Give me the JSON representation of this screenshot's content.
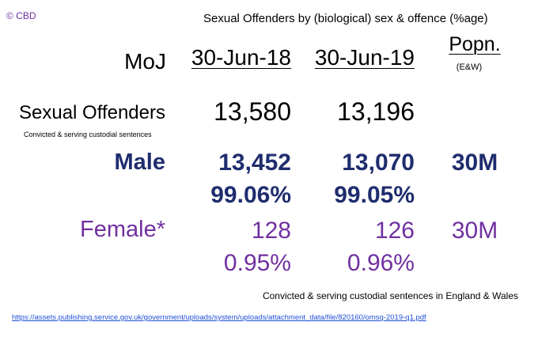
{
  "copyright": "© CBD",
  "title": "Sexual Offenders by (biological) sex & offence (%age)",
  "header": {
    "moj": "MoJ",
    "date1": "30-Jun-18",
    "date2": "30-Jun-19",
    "popn": "Popn.",
    "popn_sub": "(E&W)"
  },
  "rows": {
    "sexual_offenders": {
      "label": "Sexual Offenders",
      "note": "Convicted & serving custodial sentences",
      "v1": "13,580",
      "v2": "13,196"
    },
    "male": {
      "label": "Male",
      "v1": "13,452",
      "v2": "13,070",
      "popn": "30M",
      "pct1": "99.06%",
      "pct2": "99.05%"
    },
    "female": {
      "label": "Female*",
      "v1": "128",
      "v2": "126",
      "popn": "30M",
      "pct1": "0.95%",
      "pct2": "0.96%"
    }
  },
  "footnote": "Convicted & serving custodial sentences in England & Wales",
  "source_link": "https://assets.publishing.service.gov.uk/government/uploads/system/uploads/attachment_data/file/820160/omsq-2019-q1.pdf",
  "colors": {
    "navy": "#1f2d6e",
    "purple": "#7030a0",
    "link": "#1f4fd8"
  }
}
